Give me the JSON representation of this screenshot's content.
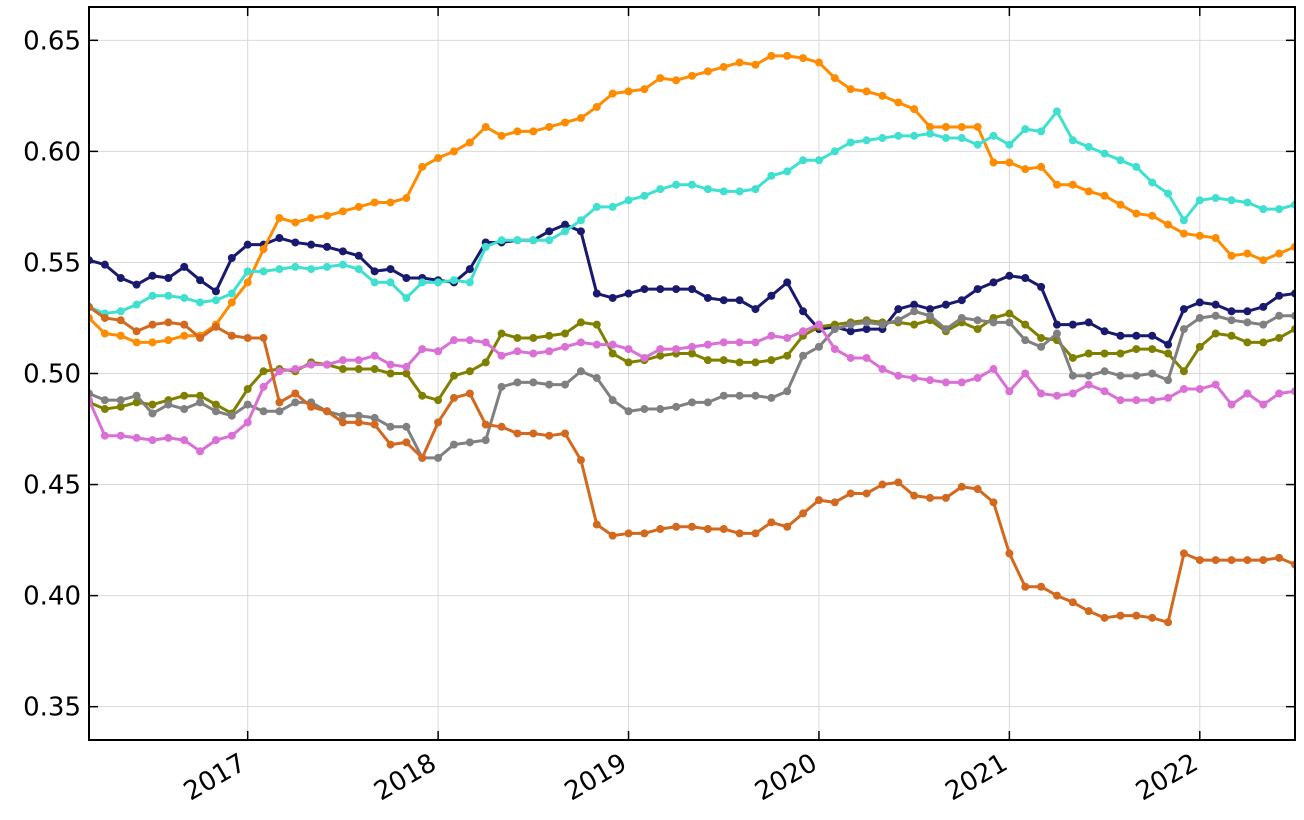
{
  "chart_data": {
    "type": "line",
    "x": [
      "2016-03",
      "2016-04",
      "2016-05",
      "2016-06",
      "2016-07",
      "2016-08",
      "2016-09",
      "2016-10",
      "2016-11",
      "2016-12",
      "2017-01",
      "2017-02",
      "2017-03",
      "2017-04",
      "2017-05",
      "2017-06",
      "2017-07",
      "2017-08",
      "2017-09",
      "2017-10",
      "2017-11",
      "2017-12",
      "2018-01",
      "2018-02",
      "2018-03",
      "2018-04",
      "2018-05",
      "2018-06",
      "2018-07",
      "2018-08",
      "2018-09",
      "2018-10",
      "2018-11",
      "2018-12",
      "2019-01",
      "2019-02",
      "2019-03",
      "2019-04",
      "2019-05",
      "2019-06",
      "2019-07",
      "2019-08",
      "2019-09",
      "2019-10",
      "2019-11",
      "2019-12",
      "2020-01",
      "2020-02",
      "2020-03",
      "2020-04",
      "2020-05",
      "2020-06",
      "2020-07",
      "2020-08",
      "2020-09",
      "2020-10",
      "2020-11",
      "2020-12",
      "2021-01",
      "2021-02",
      "2021-03",
      "2021-04",
      "2021-05",
      "2021-06",
      "2021-07",
      "2021-08",
      "2021-09",
      "2021-10",
      "2021-11",
      "2021-12",
      "2022-01",
      "2022-02",
      "2022-03",
      "2022-04",
      "2022-05",
      "2022-06",
      "2022-07"
    ],
    "series": [
      {
        "color": "#191970",
        "values": [
          0.551,
          0.549,
          0.543,
          0.54,
          0.544,
          0.543,
          0.548,
          0.542,
          0.537,
          0.552,
          0.558,
          0.558,
          0.561,
          0.559,
          0.558,
          0.557,
          0.555,
          0.553,
          0.546,
          0.547,
          0.543,
          0.543,
          0.542,
          0.541,
          0.547,
          0.559,
          0.559,
          0.56,
          0.56,
          0.564,
          0.567,
          0.564,
          0.536,
          0.534,
          0.536,
          0.538,
          0.538,
          0.538,
          0.538,
          0.534,
          0.533,
          0.533,
          0.529,
          0.535,
          0.541,
          0.528,
          0.52,
          0.521,
          0.519,
          0.52,
          0.52,
          0.529,
          0.531,
          0.529,
          0.531,
          0.533,
          0.538,
          0.541,
          0.544,
          0.543,
          0.539,
          0.522,
          0.522,
          0.523,
          0.519,
          0.517,
          0.517,
          0.517,
          0.513,
          0.529,
          0.532,
          0.531,
          0.528,
          0.528,
          0.53,
          0.535,
          0.536
        ]
      },
      {
        "color": "#ff8c00",
        "values": [
          0.525,
          0.518,
          0.517,
          0.514,
          0.514,
          0.515,
          0.517,
          0.517,
          0.522,
          0.532,
          0.541,
          0.556,
          0.57,
          0.568,
          0.57,
          0.571,
          0.573,
          0.575,
          0.577,
          0.577,
          0.579,
          0.593,
          0.597,
          0.6,
          0.604,
          0.611,
          0.607,
          0.609,
          0.609,
          0.611,
          0.613,
          0.615,
          0.62,
          0.626,
          0.627,
          0.628,
          0.633,
          0.632,
          0.634,
          0.636,
          0.638,
          0.64,
          0.639,
          0.643,
          0.643,
          0.642,
          0.64,
          0.633,
          0.628,
          0.627,
          0.625,
          0.622,
          0.619,
          0.611,
          0.611,
          0.611,
          0.611,
          0.595,
          0.595,
          0.592,
          0.593,
          0.585,
          0.585,
          0.582,
          0.58,
          0.576,
          0.572,
          0.571,
          0.567,
          0.563,
          0.562,
          0.561,
          0.553,
          0.554,
          0.551,
          0.554,
          0.557
        ]
      },
      {
        "color": "#40e0d0",
        "values": [
          0.53,
          0.527,
          0.528,
          0.531,
          0.535,
          0.535,
          0.534,
          0.532,
          0.533,
          0.536,
          0.546,
          0.546,
          0.547,
          0.548,
          0.547,
          0.548,
          0.549,
          0.547,
          0.541,
          0.541,
          0.534,
          0.541,
          0.541,
          0.542,
          0.541,
          0.557,
          0.56,
          0.56,
          0.56,
          0.56,
          0.564,
          0.569,
          0.575,
          0.575,
          0.578,
          0.58,
          0.583,
          0.585,
          0.585,
          0.583,
          0.582,
          0.582,
          0.583,
          0.589,
          0.591,
          0.596,
          0.596,
          0.6,
          0.604,
          0.605,
          0.606,
          0.607,
          0.607,
          0.608,
          0.606,
          0.606,
          0.603,
          0.607,
          0.603,
          0.61,
          0.609,
          0.618,
          0.605,
          0.602,
          0.599,
          0.596,
          0.593,
          0.586,
          0.581,
          0.569,
          0.578,
          0.579,
          0.578,
          0.577,
          0.574,
          0.574,
          0.576
        ]
      },
      {
        "color": "#808000",
        "values": [
          0.487,
          0.484,
          0.485,
          0.487,
          0.486,
          0.488,
          0.49,
          0.49,
          0.486,
          0.482,
          0.493,
          0.501,
          0.502,
          0.501,
          0.505,
          0.504,
          0.502,
          0.502,
          0.502,
          0.5,
          0.5,
          0.49,
          0.488,
          0.499,
          0.501,
          0.505,
          0.518,
          0.516,
          0.516,
          0.517,
          0.518,
          0.523,
          0.522,
          0.509,
          0.505,
          0.506,
          0.508,
          0.509,
          0.509,
          0.506,
          0.506,
          0.505,
          0.505,
          0.506,
          0.508,
          0.517,
          0.521,
          0.522,
          0.523,
          0.524,
          0.523,
          0.523,
          0.522,
          0.524,
          0.519,
          0.523,
          0.52,
          0.525,
          0.527,
          0.522,
          0.516,
          0.515,
          0.507,
          0.509,
          0.509,
          0.509,
          0.511,
          0.511,
          0.509,
          0.501,
          0.512,
          0.518,
          0.517,
          0.514,
          0.514,
          0.516,
          0.52
        ]
      },
      {
        "color": "#808080",
        "values": [
          0.491,
          0.488,
          0.488,
          0.49,
          0.482,
          0.486,
          0.484,
          0.487,
          0.483,
          0.481,
          0.486,
          0.483,
          0.483,
          0.487,
          0.487,
          0.483,
          0.481,
          0.481,
          0.48,
          0.476,
          0.476,
          0.462,
          0.462,
          0.468,
          0.469,
          0.47,
          0.494,
          0.496,
          0.496,
          0.495,
          0.495,
          0.501,
          0.498,
          0.488,
          0.483,
          0.484,
          0.484,
          0.485,
          0.487,
          0.487,
          0.49,
          0.49,
          0.49,
          0.489,
          0.492,
          0.508,
          0.512,
          0.52,
          0.522,
          0.523,
          0.522,
          0.524,
          0.528,
          0.526,
          0.52,
          0.525,
          0.524,
          0.523,
          0.523,
          0.515,
          0.512,
          0.518,
          0.499,
          0.499,
          0.501,
          0.499,
          0.499,
          0.5,
          0.497,
          0.52,
          0.525,
          0.526,
          0.524,
          0.523,
          0.522,
          0.526,
          0.526
        ]
      },
      {
        "color": "#da70d6",
        "values": [
          0.488,
          0.472,
          0.472,
          0.471,
          0.47,
          0.471,
          0.47,
          0.465,
          0.47,
          0.472,
          0.478,
          0.494,
          0.501,
          0.502,
          0.504,
          0.504,
          0.506,
          0.506,
          0.508,
          0.504,
          0.503,
          0.511,
          0.51,
          0.515,
          0.515,
          0.514,
          0.508,
          0.51,
          0.509,
          0.51,
          0.512,
          0.514,
          0.513,
          0.513,
          0.511,
          0.507,
          0.511,
          0.511,
          0.512,
          0.513,
          0.514,
          0.514,
          0.514,
          0.517,
          0.516,
          0.519,
          0.522,
          0.511,
          0.507,
          0.507,
          0.502,
          0.499,
          0.498,
          0.497,
          0.496,
          0.496,
          0.498,
          0.502,
          0.492,
          0.5,
          0.491,
          0.49,
          0.491,
          0.495,
          0.492,
          0.488,
          0.488,
          0.488,
          0.489,
          0.493,
          0.493,
          0.495,
          0.486,
          0.491,
          0.486,
          0.491,
          0.492
        ]
      },
      {
        "color": "#d2691e",
        "values": [
          0.53,
          0.525,
          0.524,
          0.519,
          0.522,
          0.523,
          0.522,
          0.516,
          0.521,
          0.517,
          0.516,
          0.516,
          0.487,
          0.491,
          0.485,
          0.483,
          0.478,
          0.478,
          0.477,
          0.468,
          0.469,
          0.462,
          0.478,
          0.489,
          0.491,
          0.477,
          0.476,
          0.473,
          0.473,
          0.472,
          0.473,
          0.461,
          0.432,
          0.427,
          0.428,
          0.428,
          0.43,
          0.431,
          0.431,
          0.43,
          0.43,
          0.428,
          0.428,
          0.433,
          0.431,
          0.437,
          0.443,
          0.442,
          0.446,
          0.446,
          0.45,
          0.451,
          0.445,
          0.444,
          0.444,
          0.449,
          0.448,
          0.442,
          0.419,
          0.404,
          0.404,
          0.4,
          0.397,
          0.393,
          0.39,
          0.391,
          0.391,
          0.39,
          0.388,
          0.419,
          0.416,
          0.416,
          0.416,
          0.416,
          0.416,
          0.417,
          0.414
        ]
      }
    ],
    "xlim": [
      "2016-03",
      "2022-07"
    ],
    "xticks": [
      2017,
      2018,
      2019,
      2020,
      2021,
      2022
    ],
    "ylim": [
      0.335,
      0.665
    ],
    "yticks": [
      0.35,
      {
        "value": 0.4,
        "label": "0.40"
      },
      0.45,
      {
        "value": 0.5,
        "label": "0.50"
      },
      0.55,
      {
        "value": 0.6,
        "label": "0.60"
      },
      0.65
    ],
    "grid": true
  }
}
